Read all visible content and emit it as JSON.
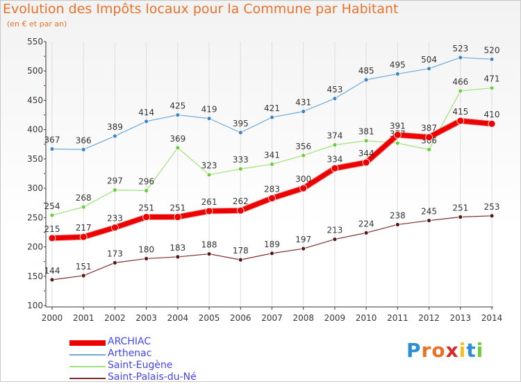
{
  "title": "Evolution des Impôts locaux pour la Commune par Habitant",
  "subtitle": "(en € et par an)",
  "logo": "Proxiti",
  "chart_data": {
    "type": "line",
    "x": [
      "2000",
      "2001",
      "2002",
      "2003",
      "2004",
      "2005",
      "2006",
      "2007",
      "2008",
      "2009",
      "2010",
      "2011",
      "2012",
      "2013",
      "2014"
    ],
    "ylim": [
      100,
      550
    ],
    "yticks": [
      100,
      150,
      200,
      250,
      300,
      350,
      400,
      450,
      500,
      550
    ],
    "grid": "vertical",
    "legend": "bottom-left",
    "series": [
      {
        "name": "Arthenac",
        "color": "#6fa8d8",
        "marker": "#3d86c6",
        "width": 1.2,
        "values": [
          367,
          366,
          389,
          414,
          425,
          419,
          395,
          421,
          431,
          453,
          485,
          495,
          504,
          523,
          520
        ]
      },
      {
        "name": "Saint-Eugène",
        "color": "#9fe07a",
        "marker": "#6ccd3c",
        "width": 1.2,
        "values": [
          254,
          268,
          297,
          296,
          369,
          323,
          333,
          341,
          356,
          374,
          381,
          377,
          366,
          466,
          471
        ]
      },
      {
        "name": "Saint-Palais-du-Né",
        "color": "#7a2c2c",
        "marker": "#5a1515",
        "width": 1.2,
        "values": [
          144,
          151,
          173,
          180,
          183,
          188,
          178,
          189,
          197,
          213,
          224,
          238,
          245,
          251,
          253
        ]
      },
      {
        "name": "ARCHIAC",
        "color": "#ee0000",
        "marker": "#ee0000",
        "width": 7,
        "values": [
          215,
          217,
          233,
          251,
          251,
          261,
          262,
          283,
          300,
          334,
          344,
          391,
          387,
          415,
          410
        ]
      }
    ],
    "legend_order": [
      "ARCHIAC",
      "Arthenac",
      "Saint-Eugène",
      "Saint-Palais-du-Né"
    ]
  }
}
